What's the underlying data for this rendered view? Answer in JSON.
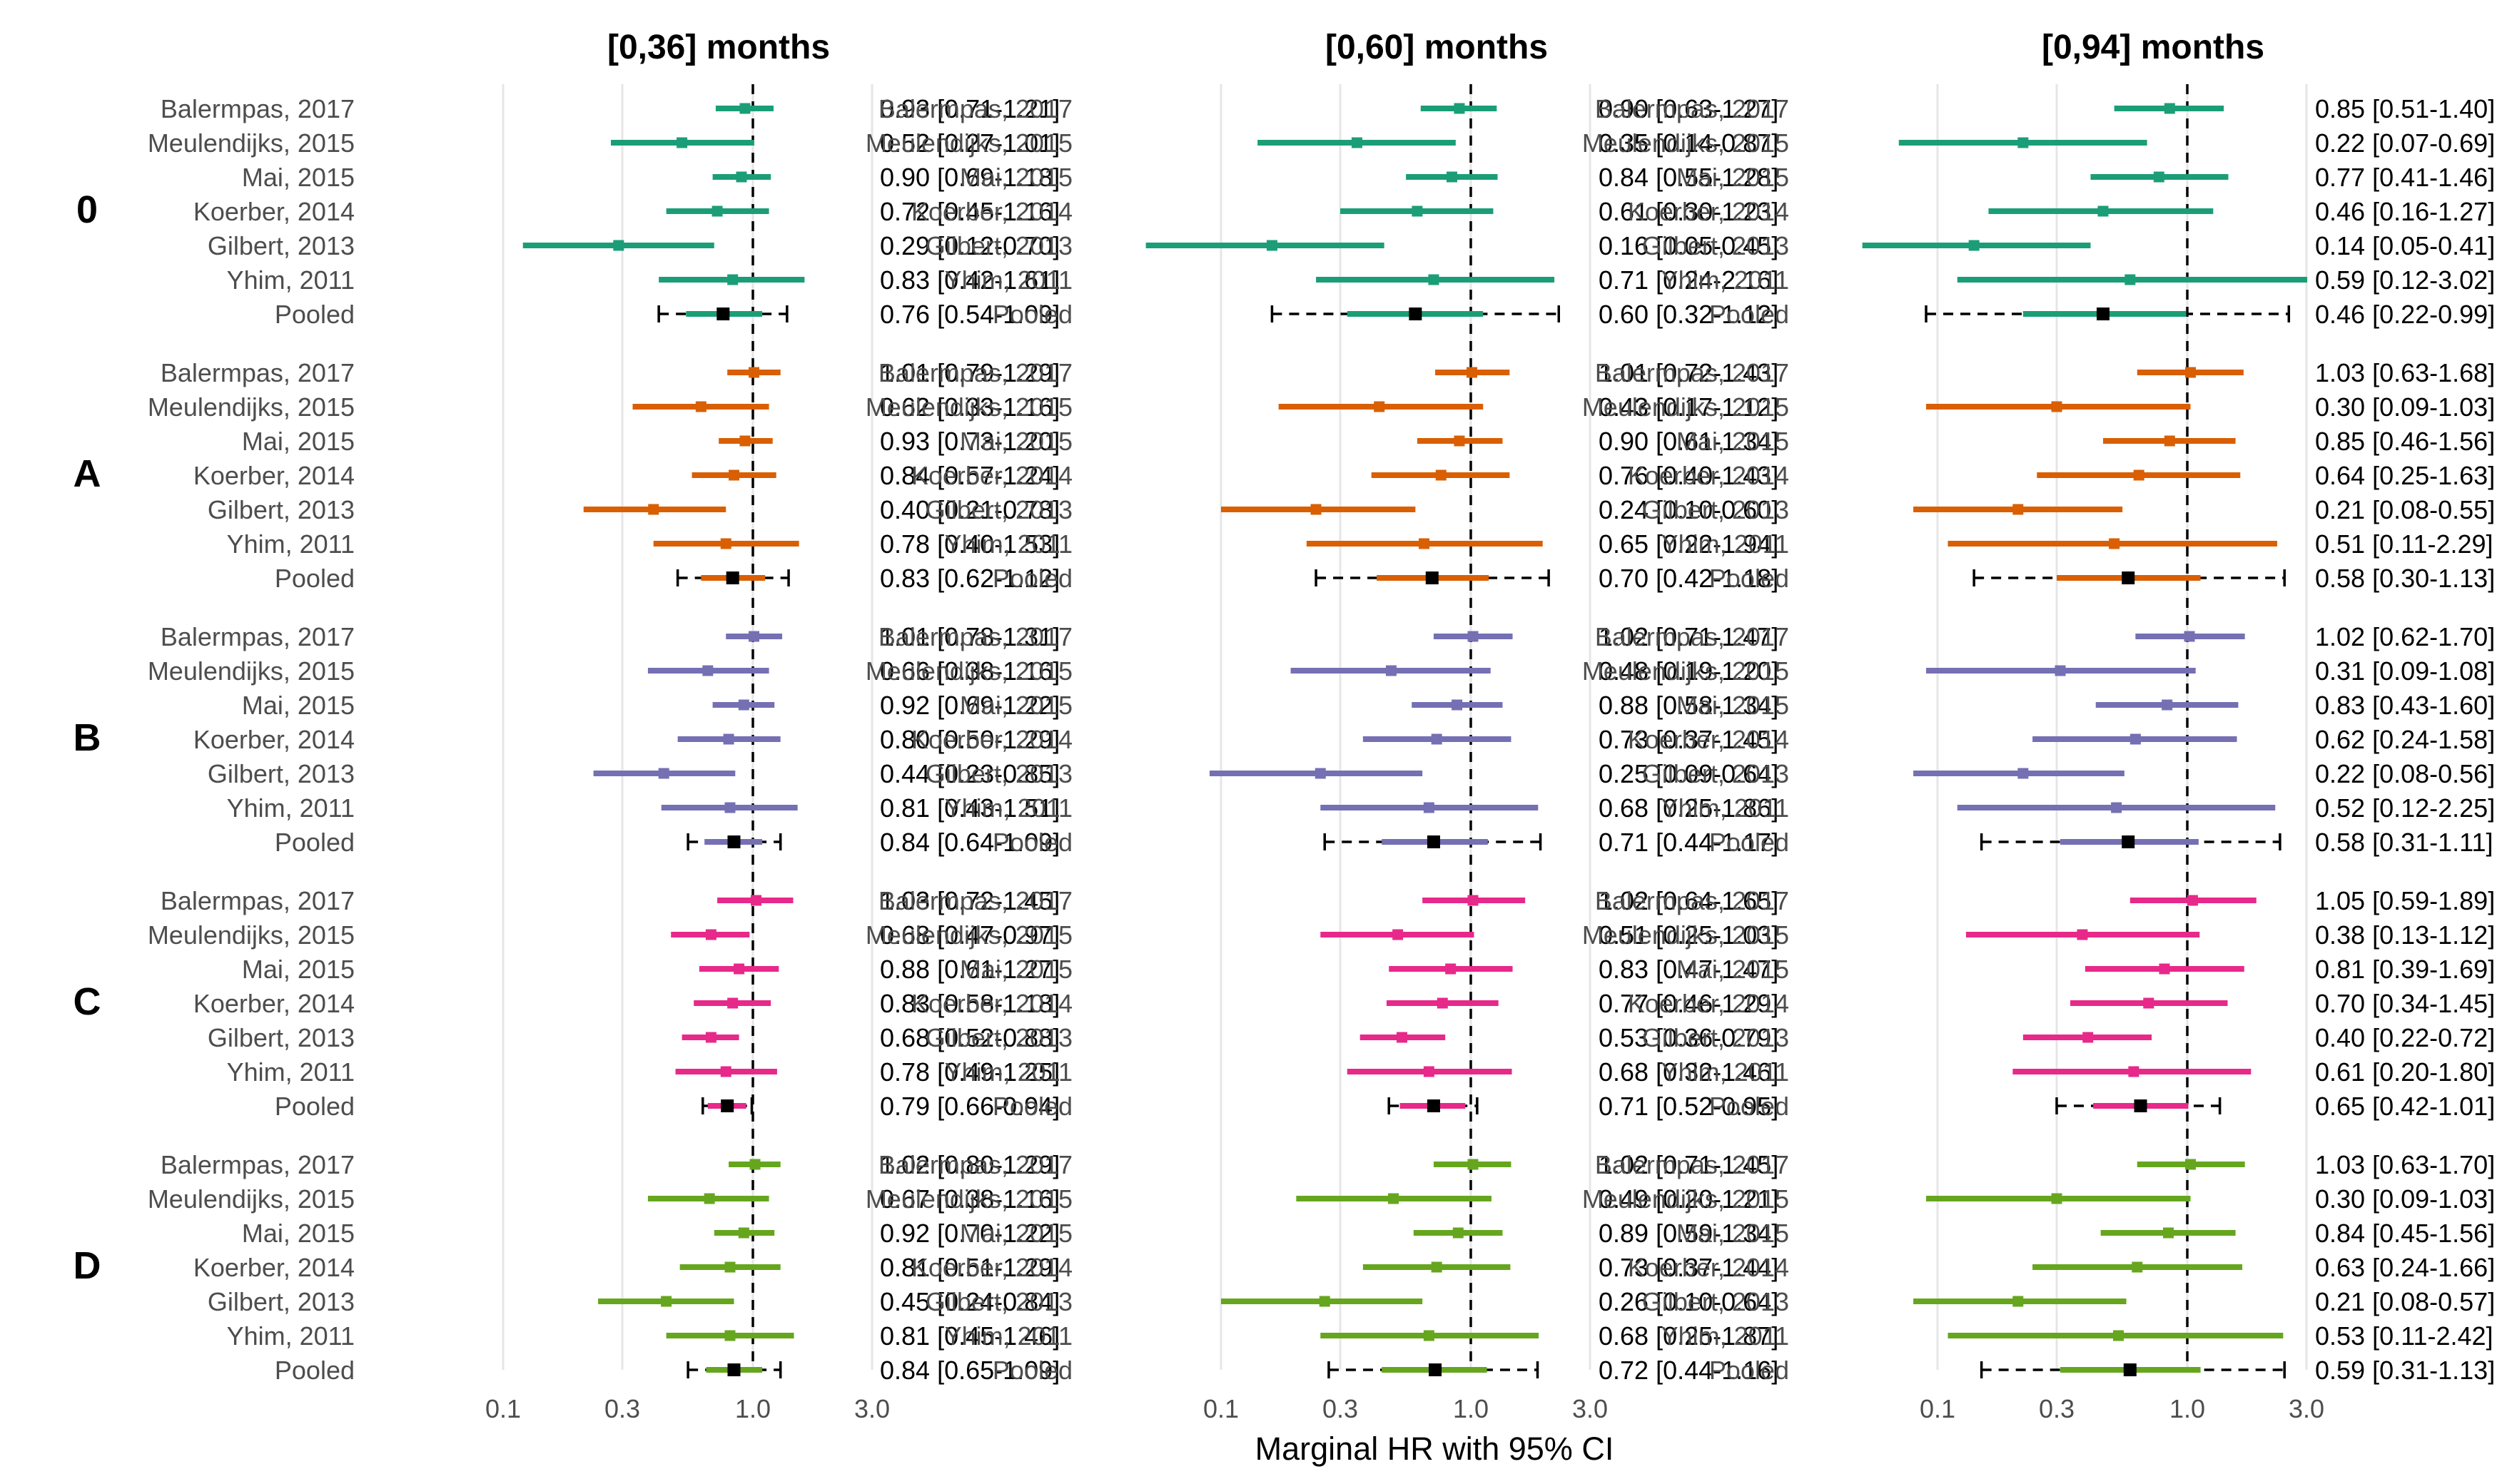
{
  "chart_data": {
    "type": "forest",
    "xlabel": "Marginal HR with 95% CI",
    "x_scale": "log",
    "xlim": [
      0.1,
      3.0
    ],
    "x_ticks": [
      0.1,
      0.3,
      1.0,
      3.0
    ],
    "x_tick_labels": [
      "0.1",
      "0.3",
      "1.0",
      "3.0"
    ],
    "reference_line": 1.0,
    "grid": "vertical",
    "group_colors": {
      "0": "#1b9e77",
      "A": "#d95f02",
      "B": "#7570b3",
      "C": "#e7298a",
      "D": "#66a61e"
    },
    "pooled_marker_color": "#000000",
    "studies": [
      "Balermpas, 2017",
      "Meulendijks, 2015",
      "Mai, 2015",
      "Koerber, 2014",
      "Gilbert, 2013",
      "Yhim, 2011",
      "Pooled"
    ],
    "panels": [
      {
        "title": "[0,36] months",
        "groups": [
          {
            "label": "0",
            "hr": [
              0.93,
              0.52,
              0.9,
              0.72,
              0.29,
              0.83,
              0.76
            ],
            "lo": [
              0.71,
              0.27,
              0.69,
              0.45,
              0.12,
              0.42,
              0.54
            ],
            "hi": [
              1.21,
              1.01,
              1.18,
              1.16,
              0.7,
              1.61,
              1.09
            ],
            "pred": [
              0.42,
              1.37
            ],
            "text": [
              "0.93 [0.71-1.21]",
              "0.52 [0.27-1.01]",
              "0.90 [0.69-1.18]",
              "0.72 [0.45-1.16]",
              "0.29 [0.12-0.70]",
              "0.83 [0.42-1.61]",
              "0.76 [0.54-1.09]"
            ]
          },
          {
            "label": "A",
            "hr": [
              1.01,
              0.62,
              0.93,
              0.84,
              0.4,
              0.78,
              0.83
            ],
            "lo": [
              0.79,
              0.33,
              0.73,
              0.57,
              0.21,
              0.4,
              0.62
            ],
            "hi": [
              1.29,
              1.16,
              1.2,
              1.24,
              0.78,
              1.53,
              1.12
            ],
            "pred": [
              0.5,
              1.39
            ],
            "text": [
              "1.01 [0.79-1.29]",
              "0.62 [0.33-1.16]",
              "0.93 [0.73-1.20]",
              "0.84 [0.57-1.24]",
              "0.40 [0.21-0.78]",
              "0.78 [0.40-1.53]",
              "0.83 [0.62-1.12]"
            ]
          },
          {
            "label": "B",
            "hr": [
              1.01,
              0.66,
              0.92,
              0.8,
              0.44,
              0.81,
              0.84
            ],
            "lo": [
              0.78,
              0.38,
              0.69,
              0.5,
              0.23,
              0.43,
              0.64
            ],
            "hi": [
              1.31,
              1.16,
              1.22,
              1.29,
              0.85,
              1.51,
              1.09
            ],
            "pred": [
              0.55,
              1.29
            ],
            "text": [
              "1.01 [0.78-1.31]",
              "0.66 [0.38-1.16]",
              "0.92 [0.69-1.22]",
              "0.80 [0.50-1.29]",
              "0.44 [0.23-0.85]",
              "0.81 [0.43-1.51]",
              "0.84 [0.64-1.09]"
            ]
          },
          {
            "label": "C",
            "hr": [
              1.03,
              0.68,
              0.88,
              0.83,
              0.68,
              0.78,
              0.79
            ],
            "lo": [
              0.72,
              0.47,
              0.61,
              0.58,
              0.52,
              0.49,
              0.66
            ],
            "hi": [
              1.45,
              0.97,
              1.27,
              1.18,
              0.88,
              1.25,
              0.94
            ],
            "pred": [
              0.63,
              0.99
            ],
            "text": [
              "1.03 [0.72-1.45]",
              "0.68 [0.47-0.97]",
              "0.88 [0.61-1.27]",
              "0.83 [0.58-1.18]",
              "0.68 [0.52-0.88]",
              "0.78 [0.49-1.25]",
              "0.79 [0.66-0.94]"
            ]
          },
          {
            "label": "D",
            "hr": [
              1.02,
              0.67,
              0.92,
              0.81,
              0.45,
              0.81,
              0.84
            ],
            "lo": [
              0.8,
              0.38,
              0.7,
              0.51,
              0.24,
              0.45,
              0.65
            ],
            "hi": [
              1.29,
              1.16,
              1.22,
              1.29,
              0.84,
              1.46,
              1.09
            ],
            "pred": [
              0.55,
              1.29
            ],
            "text": [
              "1.02 [0.80-1.29]",
              "0.67 [0.38-1.16]",
              "0.92 [0.70-1.22]",
              "0.81 [0.51-1.29]",
              "0.45 [0.24-0.84]",
              "0.81 [0.45-1.46]",
              "0.84 [0.65-1.09]"
            ]
          }
        ]
      },
      {
        "title": "[0,60] months",
        "groups": [
          {
            "label": "0",
            "hr": [
              0.9,
              0.35,
              0.84,
              0.61,
              0.16,
              0.71,
              0.6
            ],
            "lo": [
              0.63,
              0.14,
              0.55,
              0.3,
              0.05,
              0.24,
              0.32
            ],
            "hi": [
              1.27,
              0.87,
              1.28,
              1.23,
              0.45,
              2.16,
              1.12
            ],
            "pred": [
              0.16,
              2.25
            ],
            "text": [
              "0.90 [0.63-1.27]",
              "0.35 [0.14-0.87]",
              "0.84 [0.55-1.28]",
              "0.61 [0.30-1.23]",
              "0.16 [0.05-0.45]",
              "0.71 [0.24-2.16]",
              "0.60 [0.32-1.12]"
            ]
          },
          {
            "label": "A",
            "hr": [
              1.01,
              0.43,
              0.9,
              0.76,
              0.24,
              0.65,
              0.7
            ],
            "lo": [
              0.72,
              0.17,
              0.61,
              0.4,
              0.1,
              0.22,
              0.42
            ],
            "hi": [
              1.43,
              1.12,
              1.34,
              1.43,
              0.6,
              1.94,
              1.18
            ],
            "pred": [
              0.24,
              2.05
            ],
            "text": [
              "1.01 [0.72-1.43]",
              "0.43 [0.17-1.12]",
              "0.90 [0.61-1.34]",
              "0.76 [0.40-1.43]",
              "0.24 [0.10-0.60]",
              "0.65 [0.22-1.94]",
              "0.70 [0.42-1.18]"
            ]
          },
          {
            "label": "B",
            "hr": [
              1.02,
              0.48,
              0.88,
              0.73,
              0.25,
              0.68,
              0.71
            ],
            "lo": [
              0.71,
              0.19,
              0.58,
              0.37,
              0.09,
              0.25,
              0.44
            ],
            "hi": [
              1.47,
              1.2,
              1.34,
              1.45,
              0.64,
              1.86,
              1.17
            ],
            "pred": [
              0.26,
              1.9
            ],
            "text": [
              "1.02 [0.71-1.47]",
              "0.48 [0.19-1.20]",
              "0.88 [0.58-1.34]",
              "0.73 [0.37-1.45]",
              "0.25 [0.09-0.64]",
              "0.68 [0.25-1.86]",
              "0.71 [0.44-1.17]"
            ]
          },
          {
            "label": "C",
            "hr": [
              1.02,
              0.51,
              0.83,
              0.77,
              0.53,
              0.68,
              0.71
            ],
            "lo": [
              0.64,
              0.25,
              0.47,
              0.46,
              0.36,
              0.32,
              0.52
            ],
            "hi": [
              1.65,
              1.03,
              1.47,
              1.29,
              0.79,
              1.46,
              0.95
            ],
            "pred": [
              0.47,
              1.06
            ],
            "text": [
              "1.02 [0.64-1.65]",
              "0.51 [0.25-1.03]",
              "0.83 [0.47-1.47]",
              "0.77 [0.46-1.29]",
              "0.53 [0.36-0.79]",
              "0.68 [0.32-1.46]",
              "0.71 [0.52-0.95]"
            ]
          },
          {
            "label": "D",
            "hr": [
              1.02,
              0.49,
              0.89,
              0.73,
              0.26,
              0.68,
              0.72
            ],
            "lo": [
              0.71,
              0.2,
              0.59,
              0.37,
              0.1,
              0.25,
              0.44
            ],
            "hi": [
              1.45,
              1.21,
              1.34,
              1.44,
              0.64,
              1.87,
              1.16
            ],
            "pred": [
              0.27,
              1.85
            ],
            "text": [
              "1.02 [0.71-1.45]",
              "0.49 [0.20-1.21]",
              "0.89 [0.59-1.34]",
              "0.73 [0.37-1.44]",
              "0.26 [0.10-0.64]",
              "0.68 [0.25-1.87]",
              "0.72 [0.44-1.16]"
            ]
          }
        ]
      },
      {
        "title": "[0,94] months",
        "groups": [
          {
            "label": "0",
            "hr": [
              0.85,
              0.22,
              0.77,
              0.46,
              0.14,
              0.59,
              0.46
            ],
            "lo": [
              0.51,
              0.07,
              0.41,
              0.16,
              0.05,
              0.12,
              0.22
            ],
            "hi": [
              1.4,
              0.69,
              1.46,
              1.27,
              0.41,
              3.02,
              0.99
            ],
            "pred": [
              0.09,
              2.55
            ],
            "text": [
              "0.85 [0.51-1.40]",
              "0.22 [0.07-0.69]",
              "0.77 [0.41-1.46]",
              "0.46 [0.16-1.27]",
              "0.14 [0.05-0.41]",
              "0.59 [0.12-3.02]",
              "0.46 [0.22-0.99]"
            ]
          },
          {
            "label": "A",
            "hr": [
              1.03,
              0.3,
              0.85,
              0.64,
              0.21,
              0.51,
              0.58
            ],
            "lo": [
              0.63,
              0.09,
              0.46,
              0.25,
              0.08,
              0.11,
              0.3
            ],
            "hi": [
              1.68,
              1.03,
              1.56,
              1.63,
              0.55,
              2.29,
              1.13
            ],
            "pred": [
              0.14,
              2.45
            ],
            "text": [
              "1.03 [0.63-1.68]",
              "0.30 [0.09-1.03]",
              "0.85 [0.46-1.56]",
              "0.64 [0.25-1.63]",
              "0.21 [0.08-0.55]",
              "0.51 [0.11-2.29]",
              "0.58 [0.30-1.13]"
            ]
          },
          {
            "label": "B",
            "hr": [
              1.02,
              0.31,
              0.83,
              0.62,
              0.22,
              0.52,
              0.58
            ],
            "lo": [
              0.62,
              0.09,
              0.43,
              0.24,
              0.08,
              0.12,
              0.31
            ],
            "hi": [
              1.7,
              1.08,
              1.6,
              1.58,
              0.56,
              2.25,
              1.11
            ],
            "pred": [
              0.15,
              2.35
            ],
            "text": [
              "1.02 [0.62-1.70]",
              "0.31 [0.09-1.08]",
              "0.83 [0.43-1.60]",
              "0.62 [0.24-1.58]",
              "0.22 [0.08-0.56]",
              "0.52 [0.12-2.25]",
              "0.58 [0.31-1.11]"
            ]
          },
          {
            "label": "C",
            "hr": [
              1.05,
              0.38,
              0.81,
              0.7,
              0.4,
              0.61,
              0.65
            ],
            "lo": [
              0.59,
              0.13,
              0.39,
              0.34,
              0.22,
              0.2,
              0.42
            ],
            "hi": [
              1.89,
              1.12,
              1.69,
              1.45,
              0.72,
              1.8,
              1.01
            ],
            "pred": [
              0.3,
              1.35
            ],
            "text": [
              "1.05 [0.59-1.89]",
              "0.38 [0.13-1.12]",
              "0.81 [0.39-1.69]",
              "0.70 [0.34-1.45]",
              "0.40 [0.22-0.72]",
              "0.61 [0.20-1.80]",
              "0.65 [0.42-1.01]"
            ]
          },
          {
            "label": "D",
            "hr": [
              1.03,
              0.3,
              0.84,
              0.63,
              0.21,
              0.53,
              0.59
            ],
            "lo": [
              0.63,
              0.09,
              0.45,
              0.24,
              0.08,
              0.11,
              0.31
            ],
            "hi": [
              1.7,
              1.03,
              1.56,
              1.66,
              0.57,
              2.42,
              1.13
            ],
            "pred": [
              0.15,
              2.45
            ],
            "text": [
              "1.03 [0.63-1.70]",
              "0.30 [0.09-1.03]",
              "0.84 [0.45-1.56]",
              "0.63 [0.24-1.66]",
              "0.21 [0.08-0.57]",
              "0.53 [0.11-2.42]",
              "0.59 [0.31-1.13]"
            ]
          }
        ]
      }
    ]
  }
}
